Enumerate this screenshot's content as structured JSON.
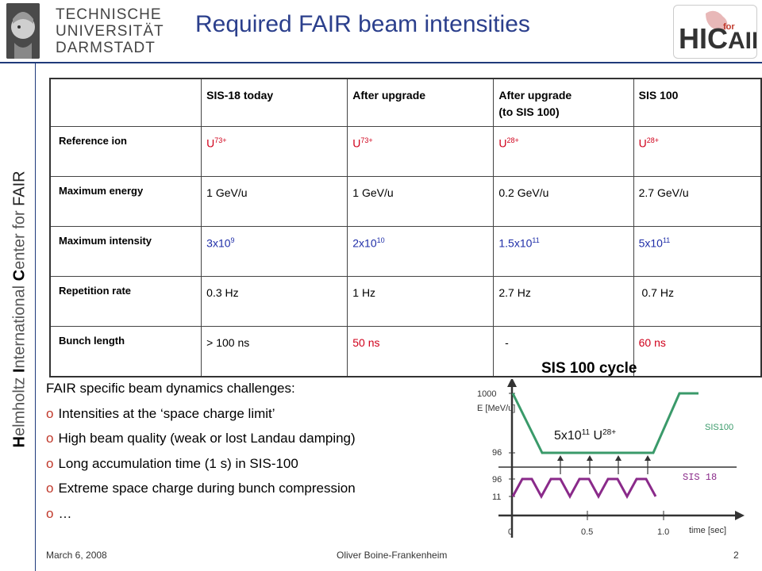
{
  "header": {
    "university_lines": [
      "TECHNISCHE",
      "UNIVERSITÄT",
      "DARMSTADT"
    ],
    "title": "Required FAIR beam intensities",
    "logo_text": "HIC for FAIR"
  },
  "sidebar": {
    "prefix_h": "H",
    "text_1": "elmholtz ",
    "prefix_i": "I",
    "text_2": "nternational ",
    "prefix_c": "C",
    "text_3": "enter for ",
    "fair": "FAIR"
  },
  "table": {
    "columns": [
      "",
      "SIS-18 today",
      "After upgrade",
      "After upgrade",
      "SIS 100"
    ],
    "columns_sub": [
      "",
      "",
      "",
      "(to SIS 100)",
      ""
    ],
    "rows": [
      {
        "label": "Reference ion",
        "cells": [
          {
            "base": "U",
            "sup": "73+",
            "color": "red"
          },
          {
            "base": "U",
            "sup": "73+",
            "color": "red"
          },
          {
            "base": "U",
            "sup": "28+",
            "color": "red"
          },
          {
            "base": "U",
            "sup": "28+",
            "color": "red"
          }
        ]
      },
      {
        "label": "Maximum energy",
        "cells": [
          {
            "base": "1 GeV/u",
            "sup": "",
            "color": "black"
          },
          {
            "base": "1 GeV/u",
            "sup": "",
            "color": "black"
          },
          {
            "base": "0.2 GeV/u",
            "sup": "",
            "color": "black"
          },
          {
            "base": "2.7 GeV/u",
            "sup": "",
            "color": "black"
          }
        ]
      },
      {
        "label": "Maximum intensity",
        "cells": [
          {
            "base": "3x10",
            "sup": "9",
            "color": "blue"
          },
          {
            "base": "2x10",
            "sup": "10",
            "color": "blue"
          },
          {
            "base": "1.5x10",
            "sup": "11",
            "color": "blue"
          },
          {
            "base": "5x10",
            "sup": "11",
            "color": "blue"
          }
        ]
      },
      {
        "label": "Repetition rate",
        "cells": [
          {
            "base": "0.3 Hz",
            "sup": "",
            "color": "black"
          },
          {
            "base": "1 Hz",
            "sup": "",
            "color": "black"
          },
          {
            "base": "2.7 Hz",
            "sup": "",
            "color": "black"
          },
          {
            "base": " 0.7 Hz",
            "sup": "",
            "color": "black"
          }
        ]
      },
      {
        "label": "Bunch length",
        "cells": [
          {
            "base": "> 100 ns",
            "sup": "",
            "color": "black"
          },
          {
            "base": "50 ns",
            "sup": "",
            "color": "red"
          },
          {
            "base": "  -",
            "sup": "",
            "color": "black"
          },
          {
            "base": "60 ns",
            "sup": "",
            "color": "red"
          }
        ]
      }
    ]
  },
  "challenges": {
    "heading": "FAIR specific beam dynamics challenges:",
    "bullet_char": "o",
    "items": [
      "Intensities at the ‘space charge limit’",
      "High beam quality (weak or lost Landau damping)",
      "Long accumulation time (1 s) in SIS-100",
      "Extreme space charge during bunch compression",
      "…"
    ]
  },
  "cycle": {
    "title": "SIS 100 cycle",
    "energy_label": "E [MeV/u]",
    "y_ticks_top": [
      "1000",
      "96"
    ],
    "y_ticks_bottom": [
      "96",
      "11"
    ],
    "annotation_base": "5x10",
    "annotation_sup1": "11",
    "annotation_mid": " U",
    "annotation_sup2": "28+",
    "label_sis100": "SIS100",
    "label_sis18": "SIS 18",
    "x_ticks": [
      "0",
      "0.5",
      "1.0"
    ],
    "x_label": "time [sec]",
    "colors": {
      "sis100": "#3a9a6a",
      "sis18": "#8a2a8a"
    }
  },
  "footer": {
    "date": "March 6, 2008",
    "author": "Oliver Boine-Frankenheim",
    "page": "2"
  }
}
